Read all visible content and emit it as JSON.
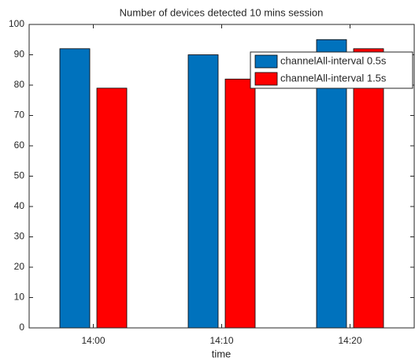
{
  "chart_data": {
    "type": "bar",
    "title": "Number of devices detected 10 mins session",
    "x_label": "time",
    "categories": [
      "14:00",
      "14:10",
      "14:20"
    ],
    "series": [
      {
        "name": "channelAll-interval 0.5s",
        "color": "#0072bd",
        "values": [
          92,
          90,
          95
        ]
      },
      {
        "name": "channelAll-interval 1.5s",
        "color": "#ff0000",
        "values": [
          79,
          82,
          92
        ]
      }
    ],
    "ylim": [
      0,
      100
    ],
    "yticks": [
      0,
      10,
      20,
      30,
      40,
      50,
      60,
      70,
      80,
      90,
      100
    ],
    "legend": "northeast"
  }
}
